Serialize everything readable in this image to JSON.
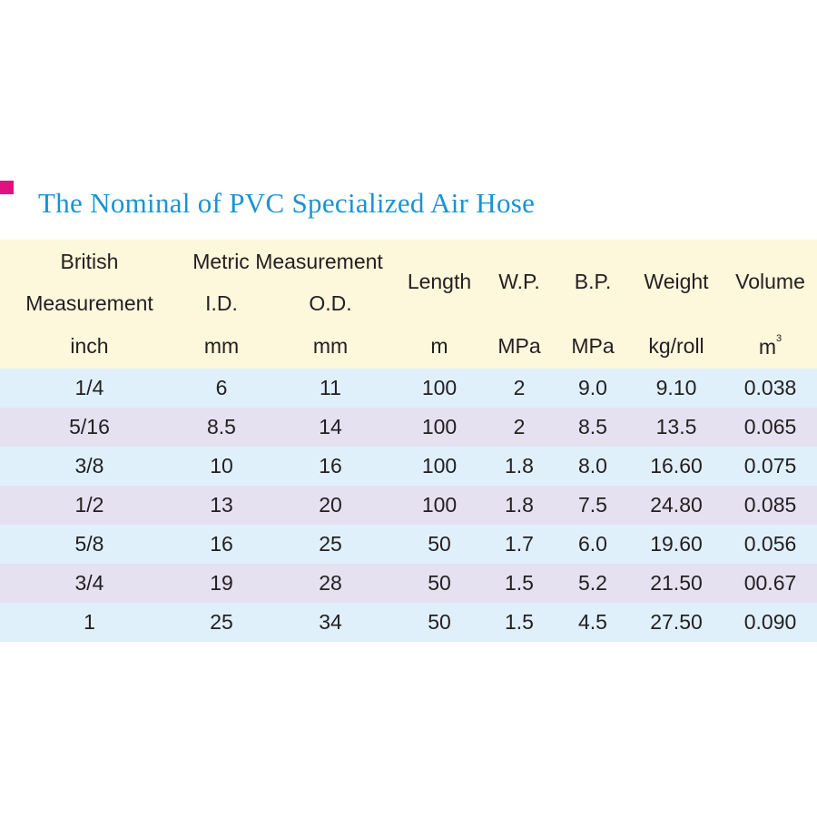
{
  "title": "The Nominal of PVC Specialized Air Hose",
  "colors": {
    "bullet": "#e0127e",
    "title": "#1b93d1",
    "header_bg": "#fdf7dc",
    "row_blue": "#dff0fb",
    "row_purple": "#e5e1f1"
  },
  "header": {
    "british_line1": "British",
    "british_line2": "Measurement",
    "british_unit": "inch",
    "metric": "Metric Measurement",
    "id": "I.D.",
    "id_unit": "mm",
    "od": "O.D.",
    "od_unit": "mm",
    "length": "Length",
    "length_unit": "m",
    "wp": "W.P.",
    "wp_unit": "MPa",
    "bp": "B.P.",
    "bp_unit": "MPa",
    "weight": "Weight",
    "weight_unit": "kg/roll",
    "volume": "Volume",
    "volume_unit": "m",
    "volume_exp": "3"
  },
  "rows": [
    [
      "1/4",
      "6",
      "11",
      "100",
      "2",
      "9.0",
      "9.10",
      "0.038"
    ],
    [
      "5/16",
      "8.5",
      "14",
      "100",
      "2",
      "8.5",
      "13.5",
      "0.065"
    ],
    [
      "3/8",
      "10",
      "16",
      "100",
      "1.8",
      "8.0",
      "16.60",
      "0.075"
    ],
    [
      "1/2",
      "13",
      "20",
      "100",
      "1.8",
      "7.5",
      "24.80",
      "0.085"
    ],
    [
      "5/8",
      "16",
      "25",
      "50",
      "1.7",
      "6.0",
      "19.60",
      "0.056"
    ],
    [
      "3/4",
      "19",
      "28",
      "50",
      "1.5",
      "5.2",
      "21.50",
      "00.67"
    ],
    [
      "1",
      "25",
      "34",
      "50",
      "1.5",
      "4.5",
      "27.50",
      "0.090"
    ]
  ]
}
